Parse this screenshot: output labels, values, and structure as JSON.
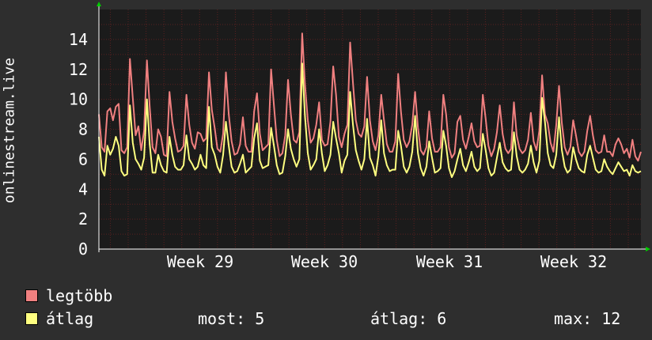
{
  "chart_data": {
    "type": "line",
    "ylabel": "onlinestream.live",
    "ylim": [
      0,
      16
    ],
    "yticks": [
      0,
      2,
      4,
      6,
      8,
      10,
      12,
      14
    ],
    "xtick_labels": [
      "Week 29",
      "Week 30",
      "Week 31",
      "Week 32"
    ],
    "grid": true,
    "colors": {
      "background": "#2e2e2e",
      "plot_bg": "#1b1b1b",
      "grid": "#5a2020",
      "axis": "#ffffff",
      "arrow": "#00cc00"
    },
    "series": [
      {
        "name": "legtöbb",
        "color": "#f08080",
        "values": [
          9,
          6.8,
          6.5,
          9.2,
          9.4,
          8.6,
          9.5,
          9.7,
          6.6,
          6.4,
          6.8,
          12.7,
          10.1,
          7.6,
          8.2,
          6.6,
          7.9,
          12.6,
          9.5,
          6.8,
          6.4,
          8,
          7.5,
          6.3,
          6.2,
          10.5,
          8.5,
          7.4,
          6.5,
          6.6,
          6.9,
          10.3,
          8.3,
          7.1,
          6.7,
          7.8,
          7.7,
          7.2,
          7.4,
          11.8,
          9.3,
          8.1,
          6.7,
          6.5,
          7.7,
          11.8,
          9,
          7.2,
          6.3,
          6.4,
          7,
          8.8,
          6.9,
          6.5,
          6.5,
          9.2,
          10.4,
          7.7,
          6.6,
          6.8,
          7,
          12,
          9.6,
          7.3,
          6.2,
          6.4,
          7.6,
          11.3,
          9,
          7.3,
          7.1,
          7.8,
          14.4,
          11,
          8.6,
          7.1,
          7.4,
          8.3,
          9.8,
          7.3,
          6.9,
          7,
          8.5,
          12.2,
          10.3,
          7.5,
          6.8,
          7.7,
          8.3,
          13.8,
          11.1,
          8.6,
          7.7,
          7.5,
          8.2,
          11.5,
          8.6,
          7.2,
          6.6,
          7.6,
          10.3,
          8.6,
          7,
          6.5,
          6.5,
          7.2,
          11.7,
          9.2,
          7.3,
          6.8,
          7.2,
          8.3,
          10.5,
          8.1,
          6.6,
          6.3,
          6.8,
          9.2,
          7.4,
          6.5,
          6.5,
          6.8,
          10.3,
          9,
          6.8,
          6.1,
          6.4,
          8.5,
          8.9,
          7.3,
          6.7,
          7.5,
          8.4,
          7.2,
          6.8,
          6.9,
          10.3,
          8.7,
          6.9,
          6.2,
          6.7,
          7.8,
          9.6,
          7.7,
          6.7,
          6.4,
          6.7,
          9.8,
          7.6,
          6.7,
          6.4,
          6.6,
          7.3,
          9.1,
          7.2,
          6.6,
          7.9,
          11.6,
          9,
          8.4,
          7.1,
          6.5,
          8.3,
          10.9,
          8.4,
          6.8,
          6.3,
          6.8,
          8.6,
          7.6,
          6.5,
          6.2,
          6.5,
          7.9,
          8.9,
          7.6,
          6.6,
          6.4,
          6.5,
          7.6,
          6.5,
          6.5,
          6.2,
          7,
          7.4,
          7,
          6.4,
          6.7,
          6.1,
          7.3,
          6.2,
          5.9,
          6.5
        ]
      },
      {
        "name": "átlag",
        "color": "#ffff80",
        "values": [
          7.5,
          5.3,
          4.9,
          6.9,
          6.3,
          6.7,
          7.5,
          6.9,
          5.2,
          4.9,
          5,
          9.6,
          7.1,
          6,
          5.7,
          5.3,
          6.1,
          10,
          7,
          5.1,
          5.1,
          6.3,
          5.6,
          5.2,
          5.1,
          7.5,
          6.3,
          5.5,
          5.3,
          5.3,
          5.6,
          7.6,
          6,
          5.7,
          5.3,
          5.5,
          6.3,
          5.6,
          5.4,
          9.5,
          6.8,
          6.3,
          5.5,
          5.1,
          6.3,
          8.5,
          6.9,
          5.5,
          5.1,
          5.2,
          5.7,
          6.3,
          5.1,
          5.3,
          5.5,
          7.4,
          8.4,
          5.9,
          5.4,
          5.5,
          5.6,
          8.1,
          6.9,
          5.6,
          5,
          5.1,
          6.2,
          8,
          6.7,
          6,
          5.5,
          6,
          12.4,
          8.9,
          6.4,
          5.3,
          5.6,
          6,
          8,
          6.4,
          5.2,
          5.6,
          6.3,
          8.5,
          7.4,
          6.4,
          5.1,
          5.9,
          6.3,
          10.5,
          8.3,
          6.6,
          5.9,
          5.3,
          6,
          8.7,
          6.1,
          5.6,
          4.9,
          6.2,
          8.6,
          6.4,
          5.6,
          5.2,
          5.3,
          5.3,
          7.9,
          6.9,
          5.5,
          5.1,
          5.5,
          6.5,
          8.9,
          6.4,
          5.4,
          4.9,
          5.5,
          7.2,
          6.1,
          5.1,
          5.2,
          5.4,
          7.9,
          6.9,
          5.4,
          4.8,
          5.2,
          6,
          6.7,
          5.6,
          5.2,
          5.8,
          6.5,
          5.5,
          5.2,
          5.4,
          7.7,
          6.6,
          5.4,
          4.9,
          5.1,
          6.1,
          7.1,
          5.8,
          5.4,
          5.2,
          5.3,
          7.8,
          6.2,
          5.3,
          5.1,
          5.3,
          5.7,
          6.9,
          5.8,
          5.1,
          5.9,
          10.1,
          8.5,
          6.4,
          5.6,
          5.4,
          6.3,
          8.8,
          6.6,
          5.5,
          5.1,
          5.3,
          6.8,
          6,
          5.4,
          5.2,
          5.1,
          6.3,
          6.9,
          6.1,
          5.3,
          5.1,
          5.2,
          6,
          5.5,
          5.2,
          5,
          5.4,
          5.8,
          5.5,
          5.2,
          5.3,
          4.9,
          5.6,
          5.2,
          5.1,
          5.2
        ]
      }
    ]
  },
  "legend": {
    "max_label": "legtöbb",
    "avg_label": "átlag"
  },
  "stats": {
    "now": "most: 5",
    "avg": "átlag: 6",
    "max": "max: 12"
  }
}
